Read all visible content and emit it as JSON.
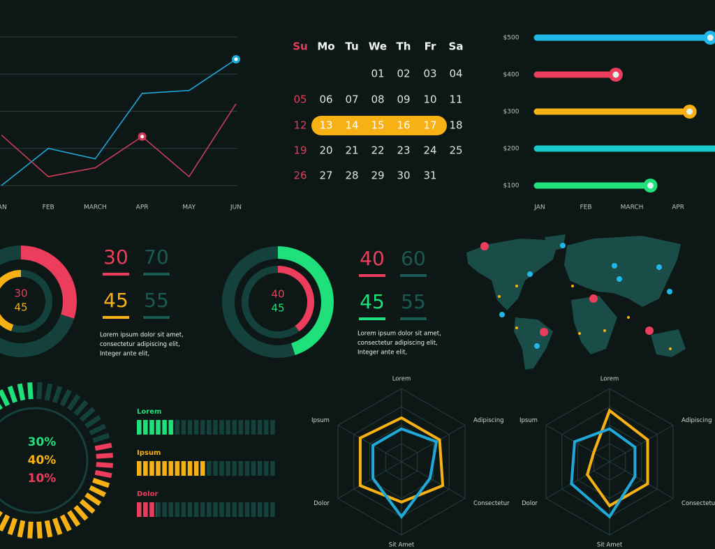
{
  "chart_data": [
    {
      "type": "line",
      "categories": [
        "JAN",
        "FEB",
        "MARCH",
        "APR",
        "MAY",
        "JUN"
      ],
      "ylim": [
        0,
        100
      ],
      "yticks": [
        0,
        25,
        50,
        75,
        100
      ],
      "grid": true,
      "series": [
        {
          "color": "#1fa8d8",
          "values": [
            0,
            25,
            18,
            62,
            64,
            85
          ],
          "marker": 5
        },
        {
          "color": "#c93d5a",
          "values": [
            34,
            6,
            12,
            33,
            6,
            55
          ],
          "marker": 3
        }
      ]
    },
    {
      "type": "hbar",
      "categories": [
        "$500",
        "$400",
        "$300",
        "$200",
        "$100"
      ],
      "values": [
        3.7,
        1.65,
        3.25,
        3.8,
        2.4
      ],
      "colors": [
        "#1fb8e8",
        "#ec3e5c",
        "#f7b115",
        "#17c9c9",
        "#1fe07a"
      ],
      "markers": [
        true,
        true,
        true,
        false,
        true
      ],
      "xlim": [
        -0.12,
        3.8
      ],
      "xticks": [
        {
          "value": 0,
          "label": "JAN"
        },
        {
          "value": 1,
          "label": "FEB"
        },
        {
          "value": 2,
          "label": "MARCH"
        },
        {
          "value": 3,
          "label": "APR"
        }
      ]
    },
    {
      "type": "donut",
      "rings": [
        {
          "value": 30,
          "rest": 70,
          "color": "#ec3e5c",
          "clockwise": true
        },
        {
          "value": 45,
          "rest": 55,
          "color": "#f7b115",
          "clockwise": false
        }
      ],
      "text": [
        "Lorem ipsum dolor sit amet,",
        "consectetur adipiscing elit,",
        "Integer ante elit,"
      ]
    },
    {
      "type": "donut",
      "rings": [
        {
          "value": 40,
          "rest": 60,
          "color": "#ec3e5c",
          "clockwise": true
        },
        {
          "value": 45,
          "rest": 55,
          "color": "#1fe07a",
          "clockwise": true
        }
      ],
      "text": [
        "Lorem ipsum dolor sit amet,",
        "consectetur adipiscing elit,",
        "Integer ante elit,"
      ]
    },
    {
      "type": "radial",
      "values": [
        30,
        40,
        10
      ],
      "value_labels": [
        "30%",
        "40%",
        "10%"
      ],
      "colors": [
        "#1fe07a",
        "#f7b115",
        "#ec3e5c"
      ]
    },
    {
      "type": "progress",
      "categories": [
        "Lorem",
        "Ipsum",
        "Dolor"
      ],
      "values": [
        27,
        50,
        14
      ],
      "colors": [
        "#1fe07a",
        "#f7b115",
        "#ec3e5c"
      ],
      "xlim": [
        0,
        100
      ]
    },
    {
      "type": "radar",
      "axes": [
        "Lorem",
        "Adipiscing",
        "Consectetur",
        "Sit Amet",
        "Dolor",
        "Ipsum"
      ],
      "rlim": [
        0,
        100
      ],
      "rticks": [
        25,
        50,
        75,
        100
      ],
      "series": [
        {
          "color": "#f7b115",
          "values": [
            60,
            60,
            65,
            55,
            65,
            65
          ]
        },
        {
          "color": "#1fa8d8",
          "values": [
            45,
            55,
            45,
            75,
            45,
            45
          ]
        }
      ]
    },
    {
      "type": "radar",
      "axes": [
        "Lorem",
        "Adipiscing",
        "Consectetur",
        "Sit Amet",
        "Dolor",
        "Ipsum"
      ],
      "rlim": [
        0,
        100
      ],
      "rticks": [
        25,
        50,
        75,
        100
      ],
      "series": [
        {
          "color": "#f7b115",
          "values": [
            70,
            60,
            60,
            60,
            35,
            25
          ]
        },
        {
          "color": "#1fa8d8",
          "values": [
            45,
            40,
            40,
            75,
            60,
            55
          ]
        }
      ]
    }
  ],
  "calendar": {
    "days": [
      "Su",
      "Mo",
      "Tu",
      "We",
      "Th",
      "Fr",
      "Sa"
    ],
    "weeks": [
      [
        null,
        null,
        null,
        "01",
        "02",
        "03",
        "04"
      ],
      [
        "05",
        "06",
        "07",
        "08",
        "09",
        "10",
        "11"
      ],
      [
        "12",
        "13",
        "14",
        "15",
        "16",
        "17",
        "18"
      ],
      [
        "19",
        "20",
        "21",
        "22",
        "23",
        "24",
        "25"
      ],
      [
        "26",
        "27",
        "28",
        "29",
        "30",
        "31",
        null
      ]
    ]
  }
}
